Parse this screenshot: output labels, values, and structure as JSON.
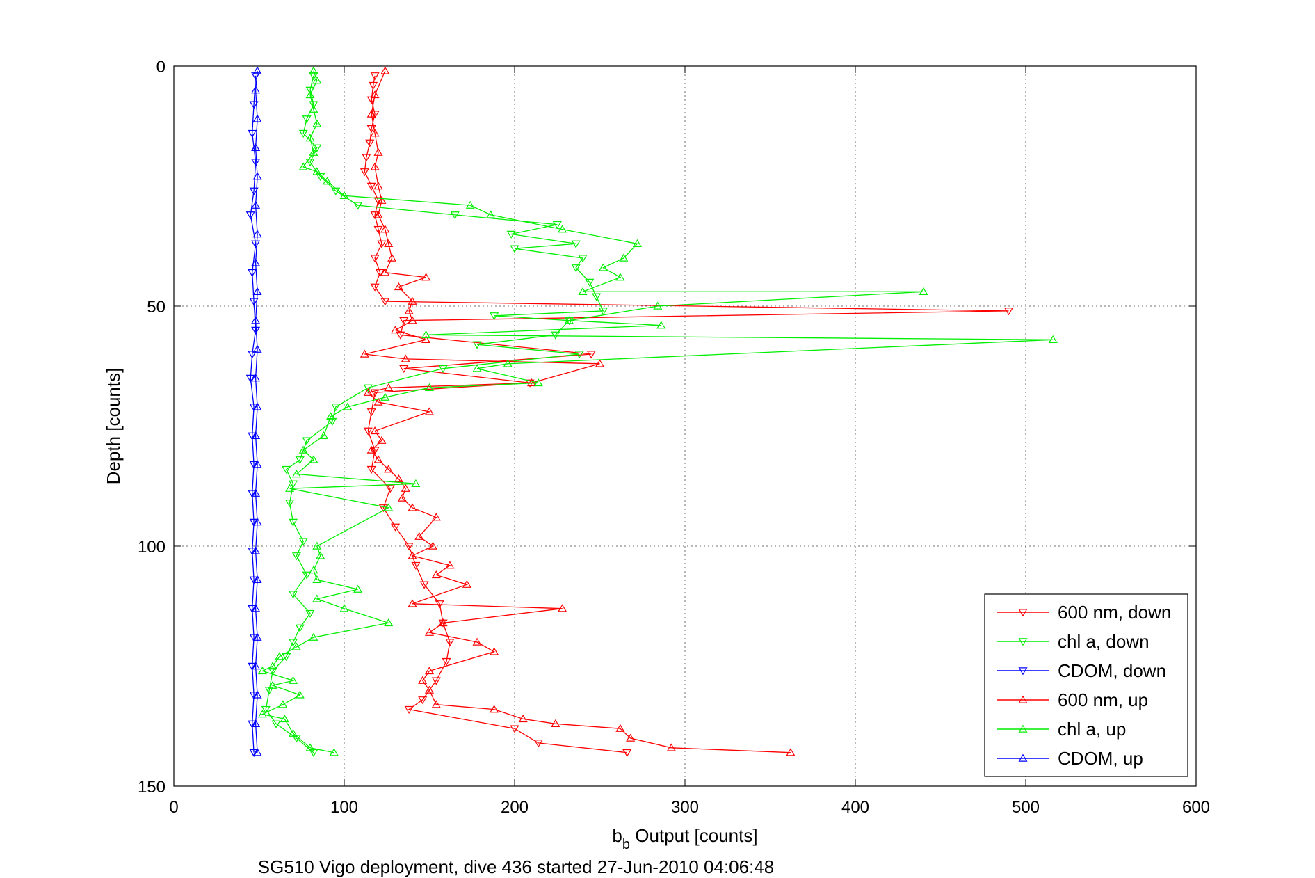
{
  "chart_data": {
    "type": "line",
    "xlabel_main": "b",
    "xlabel_sub": "b",
    "xlabel_rest": " Output [counts]",
    "ylabel": "Depth [counts]",
    "caption": "SG510 Vigo deployment, dive 436 started 27-Jun-2010 04:06:48",
    "xlim": [
      0,
      600
    ],
    "ylim": [
      0,
      150
    ],
    "y_reversed": true,
    "grid": true,
    "legend_position": "bottom-right",
    "x_ticks": [
      "0",
      "100",
      "200",
      "300",
      "400",
      "500",
      "600"
    ],
    "y_ticks": [
      "0",
      "50",
      "100",
      "150"
    ],
    "series": [
      {
        "name": "600 nm, down",
        "color": "#ff0000",
        "marker": "triangle-down",
        "points": [
          [
            118,
            2
          ],
          [
            117,
            4
          ],
          [
            116,
            7
          ],
          [
            118,
            10
          ],
          [
            116,
            13
          ],
          [
            115,
            16
          ],
          [
            113,
            19
          ],
          [
            112,
            22
          ],
          [
            116,
            25
          ],
          [
            120,
            28
          ],
          [
            118,
            31
          ],
          [
            120,
            34
          ],
          [
            122,
            37
          ],
          [
            118,
            40
          ],
          [
            121,
            43
          ],
          [
            118,
            46
          ],
          [
            124,
            49
          ],
          [
            490,
            51
          ],
          [
            135,
            53
          ],
          [
            133,
            56
          ],
          [
            245,
            60
          ],
          [
            135,
            63
          ],
          [
            209,
            66
          ],
          [
            118,
            68
          ],
          [
            116,
            72
          ],
          [
            114,
            76
          ],
          [
            118,
            80
          ],
          [
            116,
            84
          ],
          [
            127,
            88
          ],
          [
            123,
            92
          ],
          [
            130,
            96
          ],
          [
            138,
            100
          ],
          [
            142,
            104
          ],
          [
            147,
            108
          ],
          [
            156,
            112
          ],
          [
            158,
            116
          ],
          [
            162,
            120
          ],
          [
            160,
            124
          ],
          [
            154,
            128
          ],
          [
            146,
            132
          ],
          [
            138,
            134
          ],
          [
            200,
            138
          ],
          [
            214,
            141
          ],
          [
            266,
            143
          ]
        ]
      },
      {
        "name": "chl a, down",
        "color": "#00ee00",
        "marker": "triangle-down",
        "points": [
          [
            82,
            2
          ],
          [
            80,
            5
          ],
          [
            82,
            8
          ],
          [
            78,
            11
          ],
          [
            76,
            14
          ],
          [
            84,
            17
          ],
          [
            80,
            20
          ],
          [
            86,
            23
          ],
          [
            95,
            26
          ],
          [
            108,
            29
          ],
          [
            165,
            31
          ],
          [
            225,
            33
          ],
          [
            198,
            35
          ],
          [
            236,
            37
          ],
          [
            200,
            38
          ],
          [
            240,
            40
          ],
          [
            236,
            42
          ],
          [
            244,
            45
          ],
          [
            248,
            48
          ],
          [
            252,
            51
          ],
          [
            188,
            52
          ],
          [
            232,
            53
          ],
          [
            224,
            56
          ],
          [
            178,
            58
          ],
          [
            238,
            60
          ],
          [
            158,
            63
          ],
          [
            114,
            67
          ],
          [
            95,
            71
          ],
          [
            93,
            74
          ],
          [
            78,
            78
          ],
          [
            74,
            82
          ],
          [
            66,
            84
          ],
          [
            70,
            87
          ],
          [
            68,
            91
          ],
          [
            70,
            95
          ],
          [
            76,
            99
          ],
          [
            72,
            102
          ],
          [
            78,
            106
          ],
          [
            70,
            110
          ],
          [
            80,
            114
          ],
          [
            74,
            117
          ],
          [
            70,
            120
          ],
          [
            66,
            123
          ],
          [
            58,
            126
          ],
          [
            56,
            130
          ],
          [
            54,
            134
          ],
          [
            60,
            137
          ],
          [
            72,
            140
          ],
          [
            82,
            143
          ]
        ]
      },
      {
        "name": "CDOM, down",
        "color": "#0000ff",
        "marker": "triangle-down",
        "points": [
          [
            48,
            2
          ],
          [
            47,
            8
          ],
          [
            46,
            14
          ],
          [
            48,
            20
          ],
          [
            47,
            26
          ],
          [
            45,
            31
          ],
          [
            48,
            37
          ],
          [
            46,
            43
          ],
          [
            47,
            49
          ],
          [
            48,
            55
          ],
          [
            46,
            60
          ],
          [
            45,
            65
          ],
          [
            47,
            71
          ],
          [
            46,
            77
          ],
          [
            47,
            83
          ],
          [
            46,
            89
          ],
          [
            47,
            95
          ],
          [
            46,
            101
          ],
          [
            47,
            107
          ],
          [
            46,
            113
          ],
          [
            47,
            119
          ],
          [
            46,
            125
          ],
          [
            47,
            131
          ],
          [
            46,
            137
          ],
          [
            47,
            143
          ]
        ]
      },
      {
        "name": "600 nm, up",
        "color": "#ff0000",
        "marker": "triangle-up",
        "points": [
          [
            362,
            143
          ],
          [
            292,
            142
          ],
          [
            268,
            140
          ],
          [
            262,
            138
          ],
          [
            224,
            137
          ],
          [
            205,
            136
          ],
          [
            188,
            134
          ],
          [
            154,
            133
          ],
          [
            150,
            130
          ],
          [
            146,
            128
          ],
          [
            150,
            126
          ],
          [
            188,
            122
          ],
          [
            178,
            120
          ],
          [
            150,
            118
          ],
          [
            158,
            116
          ],
          [
            228,
            113
          ],
          [
            140,
            112
          ],
          [
            172,
            108
          ],
          [
            154,
            106
          ],
          [
            162,
            104
          ],
          [
            140,
            102
          ],
          [
            152,
            100
          ],
          [
            144,
            98
          ],
          [
            154,
            94
          ],
          [
            140,
            92
          ],
          [
            134,
            90
          ],
          [
            136,
            88
          ],
          [
            132,
            86
          ],
          [
            126,
            84
          ],
          [
            120,
            82
          ],
          [
            116,
            80
          ],
          [
            122,
            78
          ],
          [
            118,
            76
          ],
          [
            150,
            72
          ],
          [
            120,
            70
          ],
          [
            114,
            68
          ],
          [
            126,
            67
          ],
          [
            210,
            66
          ],
          [
            250,
            62
          ],
          [
            136,
            61
          ],
          [
            112,
            60
          ],
          [
            148,
            57
          ],
          [
            130,
            55
          ],
          [
            140,
            53
          ],
          [
            138,
            51
          ],
          [
            140,
            49
          ],
          [
            132,
            46
          ],
          [
            148,
            44
          ],
          [
            124,
            43
          ],
          [
            128,
            40
          ],
          [
            126,
            37
          ],
          [
            124,
            34
          ],
          [
            120,
            31
          ],
          [
            122,
            28
          ],
          [
            120,
            25
          ],
          [
            118,
            21
          ],
          [
            120,
            18
          ],
          [
            118,
            14
          ],
          [
            116,
            10
          ],
          [
            118,
            6
          ],
          [
            124,
            1
          ]
        ]
      },
      {
        "name": "chl a, up",
        "color": "#00ee00",
        "marker": "triangle-up",
        "points": [
          [
            94,
            143
          ],
          [
            80,
            142
          ],
          [
            70,
            139
          ],
          [
            65,
            136
          ],
          [
            52,
            135
          ],
          [
            64,
            133
          ],
          [
            74,
            131
          ],
          [
            58,
            129
          ],
          [
            70,
            128
          ],
          [
            52,
            126
          ],
          [
            58,
            125
          ],
          [
            62,
            123
          ],
          [
            72,
            121
          ],
          [
            82,
            119
          ],
          [
            126,
            116
          ],
          [
            100,
            113
          ],
          [
            84,
            111
          ],
          [
            108,
            109
          ],
          [
            84,
            107
          ],
          [
            82,
            105
          ],
          [
            86,
            102
          ],
          [
            84,
            100
          ],
          [
            126,
            92
          ],
          [
            68,
            88
          ],
          [
            142,
            87
          ],
          [
            72,
            85
          ],
          [
            82,
            82
          ],
          [
            76,
            80
          ],
          [
            88,
            77
          ],
          [
            92,
            73
          ],
          [
            102,
            71
          ],
          [
            124,
            69
          ],
          [
            150,
            67
          ],
          [
            214,
            66
          ],
          [
            178,
            63
          ],
          [
            196,
            62
          ],
          [
            516,
            57
          ],
          [
            148,
            56
          ],
          [
            286,
            54
          ],
          [
            232,
            53
          ],
          [
            284,
            50
          ],
          [
            440,
            47
          ],
          [
            240,
            47
          ],
          [
            262,
            44
          ],
          [
            252,
            42
          ],
          [
            264,
            40
          ],
          [
            272,
            37
          ],
          [
            228,
            34
          ],
          [
            186,
            31
          ],
          [
            174,
            29
          ],
          [
            100,
            27
          ],
          [
            90,
            24
          ],
          [
            84,
            22
          ],
          [
            76,
            21
          ],
          [
            82,
            18
          ],
          [
            80,
            15
          ],
          [
            84,
            12
          ],
          [
            82,
            9
          ],
          [
            80,
            6
          ],
          [
            84,
            3
          ],
          [
            82,
            1
          ]
        ]
      },
      {
        "name": "CDOM, up",
        "color": "#0000ff",
        "marker": "triangle-up",
        "points": [
          [
            49,
            143
          ],
          [
            48,
            137
          ],
          [
            49,
            131
          ],
          [
            48,
            125
          ],
          [
            49,
            119
          ],
          [
            48,
            113
          ],
          [
            49,
            107
          ],
          [
            48,
            101
          ],
          [
            49,
            95
          ],
          [
            48,
            89
          ],
          [
            49,
            83
          ],
          [
            48,
            77
          ],
          [
            49,
            71
          ],
          [
            48,
            65
          ],
          [
            49,
            59
          ],
          [
            48,
            53
          ],
          [
            49,
            47
          ],
          [
            48,
            41
          ],
          [
            49,
            35
          ],
          [
            48,
            29
          ],
          [
            49,
            23
          ],
          [
            48,
            17
          ],
          [
            49,
            11
          ],
          [
            48,
            5
          ],
          [
            49,
            1
          ]
        ]
      }
    ]
  }
}
